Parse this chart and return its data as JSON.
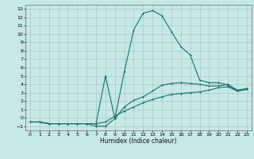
{
  "xlabel": "Humidex (Indice chaleur)",
  "bg_color": "#c8e8e8",
  "grid_color": "#a8cece",
  "line_color": "#1a6e64",
  "xlim": [
    -0.5,
    23.5
  ],
  "ylim": [
    -1.5,
    13.5
  ],
  "xticks": [
    0,
    1,
    2,
    3,
    4,
    5,
    6,
    7,
    8,
    9,
    10,
    11,
    12,
    13,
    14,
    15,
    16,
    17,
    18,
    19,
    20,
    21,
    22,
    23
  ],
  "yticks": [
    -1,
    0,
    1,
    2,
    3,
    4,
    5,
    6,
    7,
    8,
    9,
    10,
    11,
    12,
    13
  ],
  "line1_x": [
    0,
    1,
    2,
    3,
    4,
    5,
    6,
    7,
    8,
    9,
    10,
    11,
    12,
    13,
    14,
    15,
    16,
    17,
    18,
    19,
    20,
    21,
    22,
    23
  ],
  "line1_y": [
    -0.5,
    -0.5,
    -0.7,
    -0.7,
    -0.7,
    -0.7,
    -0.7,
    -0.7,
    -0.5,
    0.2,
    0.8,
    1.3,
    1.8,
    2.2,
    2.5,
    2.8,
    2.9,
    3.0,
    3.1,
    3.3,
    3.6,
    3.7,
    3.2,
    3.4
  ],
  "line2_x": [
    0,
    1,
    2,
    3,
    4,
    5,
    6,
    7,
    8,
    9,
    10,
    11,
    12,
    13,
    14,
    15,
    16,
    17,
    18,
    19,
    20,
    21,
    22,
    23
  ],
  "line2_y": [
    -0.5,
    -0.5,
    -0.7,
    -0.7,
    -0.7,
    -0.7,
    -0.7,
    -1.0,
    -1.0,
    -0.1,
    1.3,
    2.1,
    2.5,
    3.2,
    3.9,
    4.1,
    4.2,
    4.1,
    4.0,
    3.8,
    3.8,
    4.0,
    3.3,
    3.5
  ],
  "line3_x": [
    0,
    1,
    2,
    3,
    4,
    5,
    6,
    7,
    8,
    9,
    10,
    11,
    12,
    13,
    14,
    15,
    16,
    17,
    18,
    19,
    20,
    21,
    22,
    23
  ],
  "line3_y": [
    -0.5,
    -0.5,
    -0.7,
    -0.7,
    -0.7,
    -0.7,
    -0.7,
    -0.7,
    5.0,
    -0.1,
    5.5,
    10.5,
    12.5,
    12.8,
    12.2,
    10.3,
    8.5,
    7.5,
    4.5,
    4.2,
    4.2,
    3.9,
    3.2,
    3.4
  ]
}
